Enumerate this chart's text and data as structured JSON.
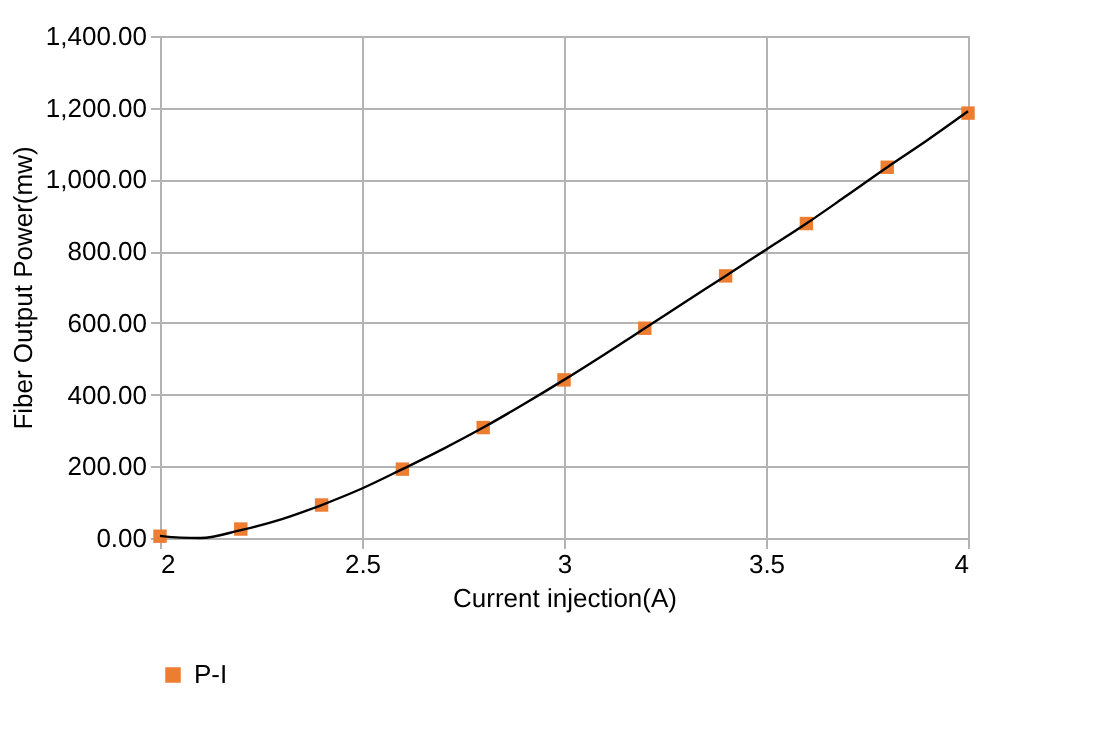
{
  "chart_data": {
    "type": "scatter",
    "xlabel": "Current injection(A)",
    "ylabel": "Fiber Output Power(mw)",
    "xlim": [
      2,
      4
    ],
    "xticks": [
      2,
      2.5,
      3,
      3.5,
      4
    ],
    "ylim": [
      0,
      1400
    ],
    "yticks": [
      {
        "value": 0,
        "label": "0.00"
      },
      {
        "value": 200,
        "label": "200.00"
      },
      {
        "value": 400,
        "label": "400.00"
      },
      {
        "value": 600,
        "label": "600.00"
      },
      {
        "value": 800,
        "label": "800.00"
      },
      {
        "value": 1000,
        "label": "1,000.00"
      },
      {
        "value": 1200,
        "label": "1,200.00"
      },
      {
        "value": 1400,
        "label": "1,400.00"
      }
    ],
    "grid": true,
    "legend": "bottom",
    "marker": "square",
    "series": [
      {
        "name": "P-I",
        "color": "#ed7d31",
        "x": [
          2.0,
          2.2,
          2.4,
          2.6,
          2.8,
          3.0,
          3.2,
          3.4,
          3.6,
          3.8,
          4.0
        ],
        "values": [
          5,
          25,
          92,
          192,
          308,
          441,
          585,
          731,
          877,
          1034,
          1185
        ]
      },
      {
        "type": "line",
        "color": "#000000",
        "line_style": "solid",
        "marker": "none",
        "x": [
          2.0,
          2.05,
          2.1,
          2.2,
          2.3,
          2.4,
          2.5,
          2.6,
          2.7,
          2.8,
          2.9,
          3.0,
          3.1,
          3.2,
          3.3,
          3.4,
          3.5,
          3.6,
          3.7,
          3.8,
          3.9,
          4.0
        ],
        "values": [
          6,
          1,
          0,
          22,
          52,
          92,
          138,
          192,
          248,
          308,
          373,
          441,
          512,
          585,
          658,
          731,
          804,
          877,
          955,
          1034,
          1110,
          1190
        ]
      }
    ]
  }
}
